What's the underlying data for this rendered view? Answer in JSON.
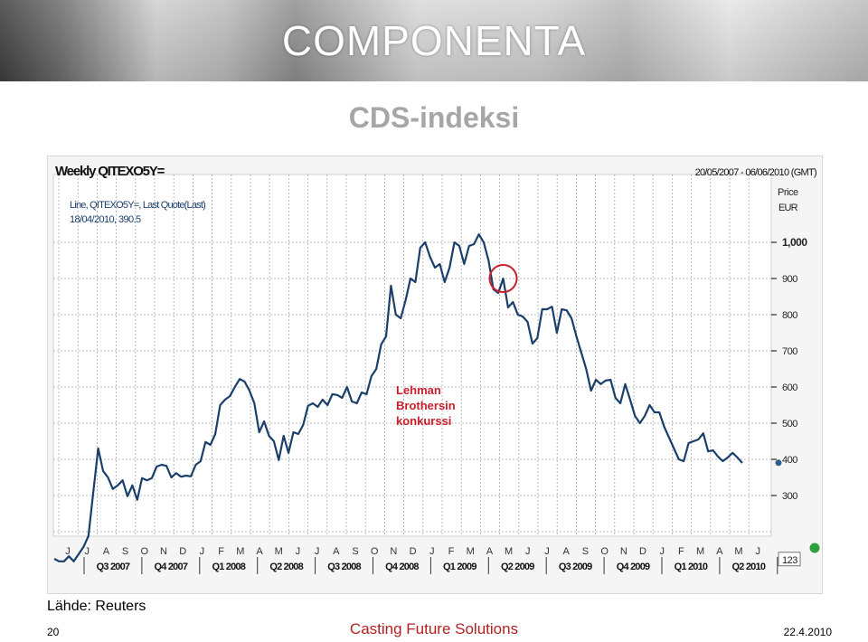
{
  "header": {
    "logo_text": "COMPONENTA"
  },
  "slide": {
    "title": "CDS-indeksi",
    "source": "Lähde: Reuters",
    "page_number": "20",
    "tagline": "Casting Future Solutions",
    "date": "22.4.2010"
  },
  "colors": {
    "line": "#1b3f6b",
    "annotation": "#cc1f2b",
    "green_dot": "#2fa13a",
    "tagline": "#b22222",
    "title": "#a6a6a6"
  },
  "chart_data": {
    "type": "line",
    "title": "Weekly QITEXO5Y=",
    "date_range": "20/05/2007 - 06/06/2010 (GMT)",
    "legend": {
      "line1": "Line, QITEXO5Y=, Last Quote(Last)",
      "line2": "18/04/2010, 390.5",
      "position": "top-left"
    },
    "y_axis": {
      "title": "Price",
      "unit": "EUR",
      "ticks": [
        {
          "value": 1000,
          "label": "1,000"
        },
        {
          "value": 900,
          "label": "900"
        },
        {
          "value": 800,
          "label": "800"
        },
        {
          "value": 700,
          "label": "700"
        },
        {
          "value": 600,
          "label": "600"
        },
        {
          "value": 500,
          "label": "500"
        },
        {
          "value": 400,
          "label": "400"
        },
        {
          "value": 300,
          "label": "300"
        }
      ],
      "ylim": [
        123,
        1000
      ],
      "lower_label": "123",
      "side": "right"
    },
    "x_axis": {
      "month_labels": [
        "J",
        "J",
        "A",
        "S",
        "O",
        "N",
        "D",
        "J",
        "F",
        "M",
        "A",
        "M",
        "J",
        "J",
        "A",
        "S",
        "O",
        "N",
        "D",
        "J",
        "F",
        "M",
        "A",
        "M",
        "J",
        "J",
        "A",
        "S",
        "O",
        "N",
        "D",
        "J",
        "F",
        "M",
        "A",
        "M",
        "J"
      ],
      "quarters": [
        "Q3 2007",
        "Q4 2007",
        "Q1 2008",
        "Q2 2008",
        "Q3 2008",
        "Q4 2008",
        "Q1 2009",
        "Q2 2009",
        "Q3 2009",
        "Q4 2009",
        "Q1 2010",
        "Q2 2010"
      ]
    },
    "grid": true,
    "annotation": {
      "line1": "Lehman",
      "line2": "Brothersin",
      "line3": "konkurssi",
      "circled_week": 92
    },
    "last_value": 390.5,
    "series": [
      {
        "values": [
          125,
          118,
          118,
          132,
          118,
          138,
          158,
          188,
          310,
          430,
          368,
          350,
          318,
          328,
          342,
          298,
          328,
          288,
          348,
          342,
          348,
          380,
          385,
          382,
          350,
          362,
          352,
          355,
          353,
          385,
          395,
          448,
          440,
          470,
          550,
          565,
          575,
          600,
          622,
          615,
          590,
          555,
          475,
          505,
          465,
          450,
          398,
          465,
          418,
          475,
          470,
          495,
          548,
          555,
          545,
          565,
          550,
          580,
          578,
          570,
          600,
          560,
          555,
          585,
          580,
          630,
          650,
          718,
          740,
          880,
          800,
          790,
          840,
          900,
          890,
          985,
          1000,
          960,
          930,
          940,
          890,
          930,
          1000,
          990,
          940,
          990,
          995,
          1022,
          1000,
          950,
          870,
          860,
          900,
          820,
          835,
          800,
          795,
          780,
          720,
          735,
          815,
          815,
          822,
          750,
          815,
          812,
          790,
          740,
          695,
          650,
          590,
          620,
          608,
          618,
          620,
          570,
          555,
          608,
          565,
          520,
          500,
          520,
          550,
          530,
          530,
          490,
          460,
          430,
          400,
          395,
          445,
          450,
          455,
          472,
          422,
          425,
          408,
          395,
          405,
          418,
          405,
          390
        ]
      }
    ]
  }
}
